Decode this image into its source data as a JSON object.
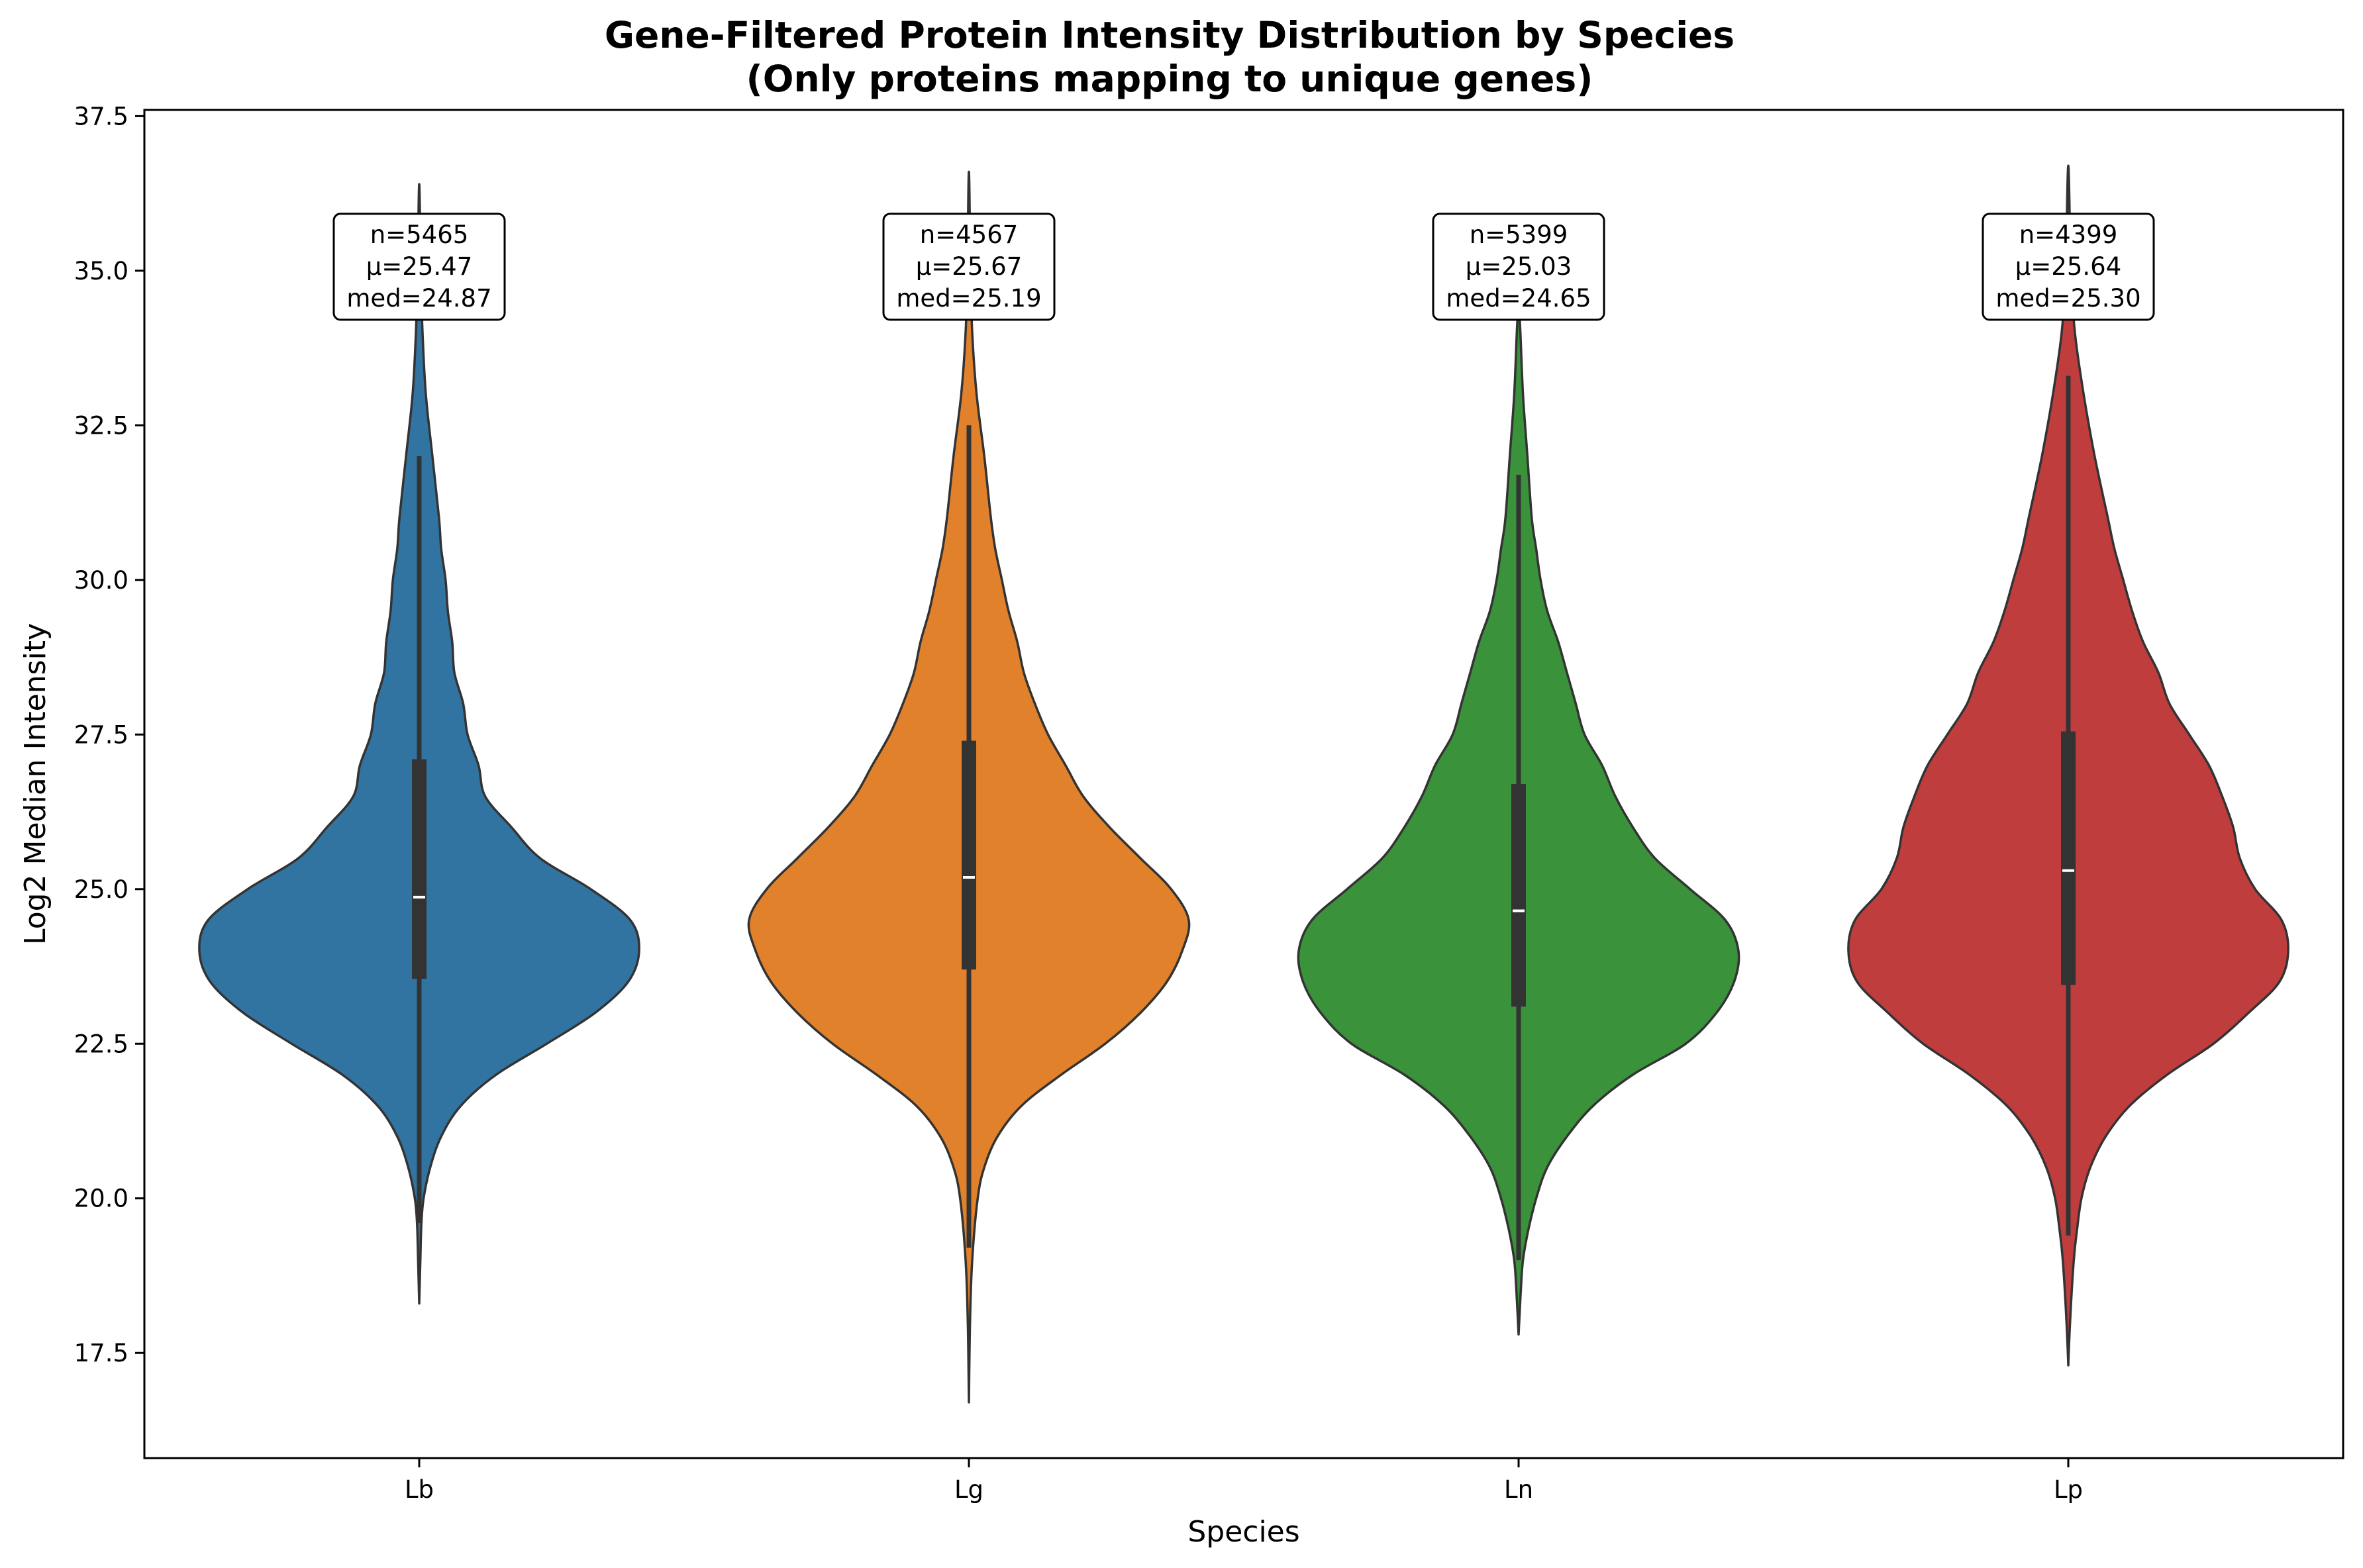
{
  "chart_data": {
    "type": "violin",
    "title_line1": "Gene-Filtered Protein Intensity Distribution by Species",
    "title_line2": "(Only proteins mapping to unique genes)",
    "xlabel": "Species",
    "ylabel": "Log2 Median Intensity",
    "ylim": [
      15.8,
      37.6
    ],
    "yticks": [
      17.5,
      20.0,
      22.5,
      25.0,
      27.5,
      30.0,
      32.5,
      35.0,
      37.5
    ],
    "ytick_labels": [
      "17.5",
      "20.0",
      "22.5",
      "25.0",
      "27.5",
      "30.0",
      "32.5",
      "35.0",
      "37.5"
    ],
    "categories": [
      "Lb",
      "Lg",
      "Ln",
      "Lp"
    ],
    "grid": false,
    "series": [
      {
        "category": "Lb",
        "color": "#3274a1",
        "n": 5465,
        "mean": 25.47,
        "median": 24.87,
        "q1": 23.55,
        "q3": 27.1,
        "whisker_low": 19.6,
        "whisker_high": 32.0,
        "min": 18.3,
        "max": 36.4,
        "annotation": [
          "n=5465",
          "μ=25.47",
          "med=24.87"
        ],
        "density": [
          [
            18.3,
            0.0
          ],
          [
            19.0,
            0.005
          ],
          [
            19.6,
            0.01
          ],
          [
            20.0,
            0.02
          ],
          [
            20.5,
            0.05
          ],
          [
            21.0,
            0.1
          ],
          [
            21.5,
            0.19
          ],
          [
            22.0,
            0.35
          ],
          [
            22.5,
            0.58
          ],
          [
            23.0,
            0.8
          ],
          [
            23.5,
            0.95
          ],
          [
            24.0,
            1.0
          ],
          [
            24.5,
            0.96
          ],
          [
            25.0,
            0.78
          ],
          [
            25.5,
            0.55
          ],
          [
            26.0,
            0.42
          ],
          [
            26.5,
            0.3
          ],
          [
            27.0,
            0.27
          ],
          [
            27.5,
            0.22
          ],
          [
            28.0,
            0.2
          ],
          [
            28.5,
            0.16
          ],
          [
            29.0,
            0.15
          ],
          [
            29.5,
            0.13
          ],
          [
            30.0,
            0.12
          ],
          [
            30.5,
            0.1
          ],
          [
            31.0,
            0.09
          ],
          [
            32.0,
            0.06
          ],
          [
            33.0,
            0.03
          ],
          [
            34.0,
            0.015
          ],
          [
            35.0,
            0.007
          ],
          [
            36.4,
            0.0
          ]
        ]
      },
      {
        "category": "Lg",
        "color": "#e1812c",
        "n": 4567,
        "mean": 25.67,
        "median": 25.19,
        "q1": 23.7,
        "q3": 27.4,
        "whisker_low": 19.2,
        "whisker_high": 32.5,
        "min": 16.7,
        "max": 36.6,
        "annotation": [
          "n=4567",
          "μ=25.67",
          "med=25.19"
        ],
        "density": [
          [
            16.7,
            0.0
          ],
          [
            18.0,
            0.005
          ],
          [
            19.0,
            0.015
          ],
          [
            20.0,
            0.04
          ],
          [
            20.5,
            0.07
          ],
          [
            21.0,
            0.13
          ],
          [
            21.5,
            0.24
          ],
          [
            22.0,
            0.42
          ],
          [
            22.5,
            0.62
          ],
          [
            23.0,
            0.78
          ],
          [
            23.5,
            0.9
          ],
          [
            24.0,
            0.97
          ],
          [
            24.5,
            1.0
          ],
          [
            25.0,
            0.92
          ],
          [
            25.5,
            0.78
          ],
          [
            26.0,
            0.64
          ],
          [
            26.5,
            0.52
          ],
          [
            27.0,
            0.44
          ],
          [
            27.5,
            0.36
          ],
          [
            28.0,
            0.3
          ],
          [
            28.5,
            0.25
          ],
          [
            29.0,
            0.22
          ],
          [
            29.5,
            0.18
          ],
          [
            30.0,
            0.15
          ],
          [
            30.5,
            0.12
          ],
          [
            31.0,
            0.1
          ],
          [
            32.0,
            0.07
          ],
          [
            33.0,
            0.035
          ],
          [
            34.0,
            0.015
          ],
          [
            35.0,
            0.007
          ],
          [
            36.6,
            0.0
          ]
        ]
      },
      {
        "category": "Ln",
        "color": "#3a923a",
        "n": 5399,
        "mean": 25.03,
        "median": 24.65,
        "q1": 23.1,
        "q3": 26.7,
        "whisker_low": 19.0,
        "whisker_high": 31.7,
        "min": 17.8,
        "max": 34.5,
        "annotation": [
          "n=5399",
          "μ=25.03",
          "med=24.65"
        ],
        "density": [
          [
            17.8,
            0.0
          ],
          [
            18.5,
            0.01
          ],
          [
            19.0,
            0.02
          ],
          [
            19.5,
            0.045
          ],
          [
            20.0,
            0.08
          ],
          [
            20.5,
            0.13
          ],
          [
            21.0,
            0.22
          ],
          [
            21.5,
            0.34
          ],
          [
            22.0,
            0.52
          ],
          [
            22.5,
            0.76
          ],
          [
            23.0,
            0.9
          ],
          [
            23.5,
            0.98
          ],
          [
            24.0,
            1.0
          ],
          [
            24.5,
            0.94
          ],
          [
            25.0,
            0.78
          ],
          [
            25.5,
            0.62
          ],
          [
            26.0,
            0.52
          ],
          [
            26.5,
            0.44
          ],
          [
            27.0,
            0.38
          ],
          [
            27.5,
            0.3
          ],
          [
            28.0,
            0.26
          ],
          [
            28.5,
            0.22
          ],
          [
            29.0,
            0.18
          ],
          [
            29.5,
            0.13
          ],
          [
            30.0,
            0.1
          ],
          [
            30.5,
            0.08
          ],
          [
            31.0,
            0.06
          ],
          [
            32.0,
            0.04
          ],
          [
            33.0,
            0.02
          ],
          [
            34.0,
            0.008
          ],
          [
            34.5,
            0.0
          ]
        ]
      },
      {
        "category": "Lp",
        "color": "#c03d3e",
        "n": 4399,
        "mean": 25.64,
        "median": 25.3,
        "q1": 23.45,
        "q3": 27.55,
        "whisker_low": 19.4,
        "whisker_high": 33.3,
        "min": 17.3,
        "max": 36.7,
        "annotation": [
          "n=4399",
          "μ=25.64",
          "med=25.30"
        ],
        "density": [
          [
            17.3,
            0.0
          ],
          [
            18.0,
            0.008
          ],
          [
            19.0,
            0.025
          ],
          [
            19.5,
            0.04
          ],
          [
            20.0,
            0.06
          ],
          [
            20.5,
            0.1
          ],
          [
            21.0,
            0.17
          ],
          [
            21.5,
            0.28
          ],
          [
            22.0,
            0.45
          ],
          [
            22.5,
            0.66
          ],
          [
            23.0,
            0.82
          ],
          [
            23.5,
            0.96
          ],
          [
            24.0,
            1.0
          ],
          [
            24.5,
            0.97
          ],
          [
            25.0,
            0.85
          ],
          [
            25.5,
            0.78
          ],
          [
            26.0,
            0.75
          ],
          [
            26.5,
            0.7
          ],
          [
            27.0,
            0.64
          ],
          [
            27.5,
            0.55
          ],
          [
            28.0,
            0.46
          ],
          [
            28.5,
            0.41
          ],
          [
            29.0,
            0.34
          ],
          [
            29.5,
            0.29
          ],
          [
            30.0,
            0.25
          ],
          [
            30.5,
            0.21
          ],
          [
            31.0,
            0.18
          ],
          [
            32.0,
            0.12
          ],
          [
            33.0,
            0.07
          ],
          [
            34.0,
            0.03
          ],
          [
            35.0,
            0.012
          ],
          [
            36.7,
            0.0
          ]
        ]
      }
    ]
  }
}
